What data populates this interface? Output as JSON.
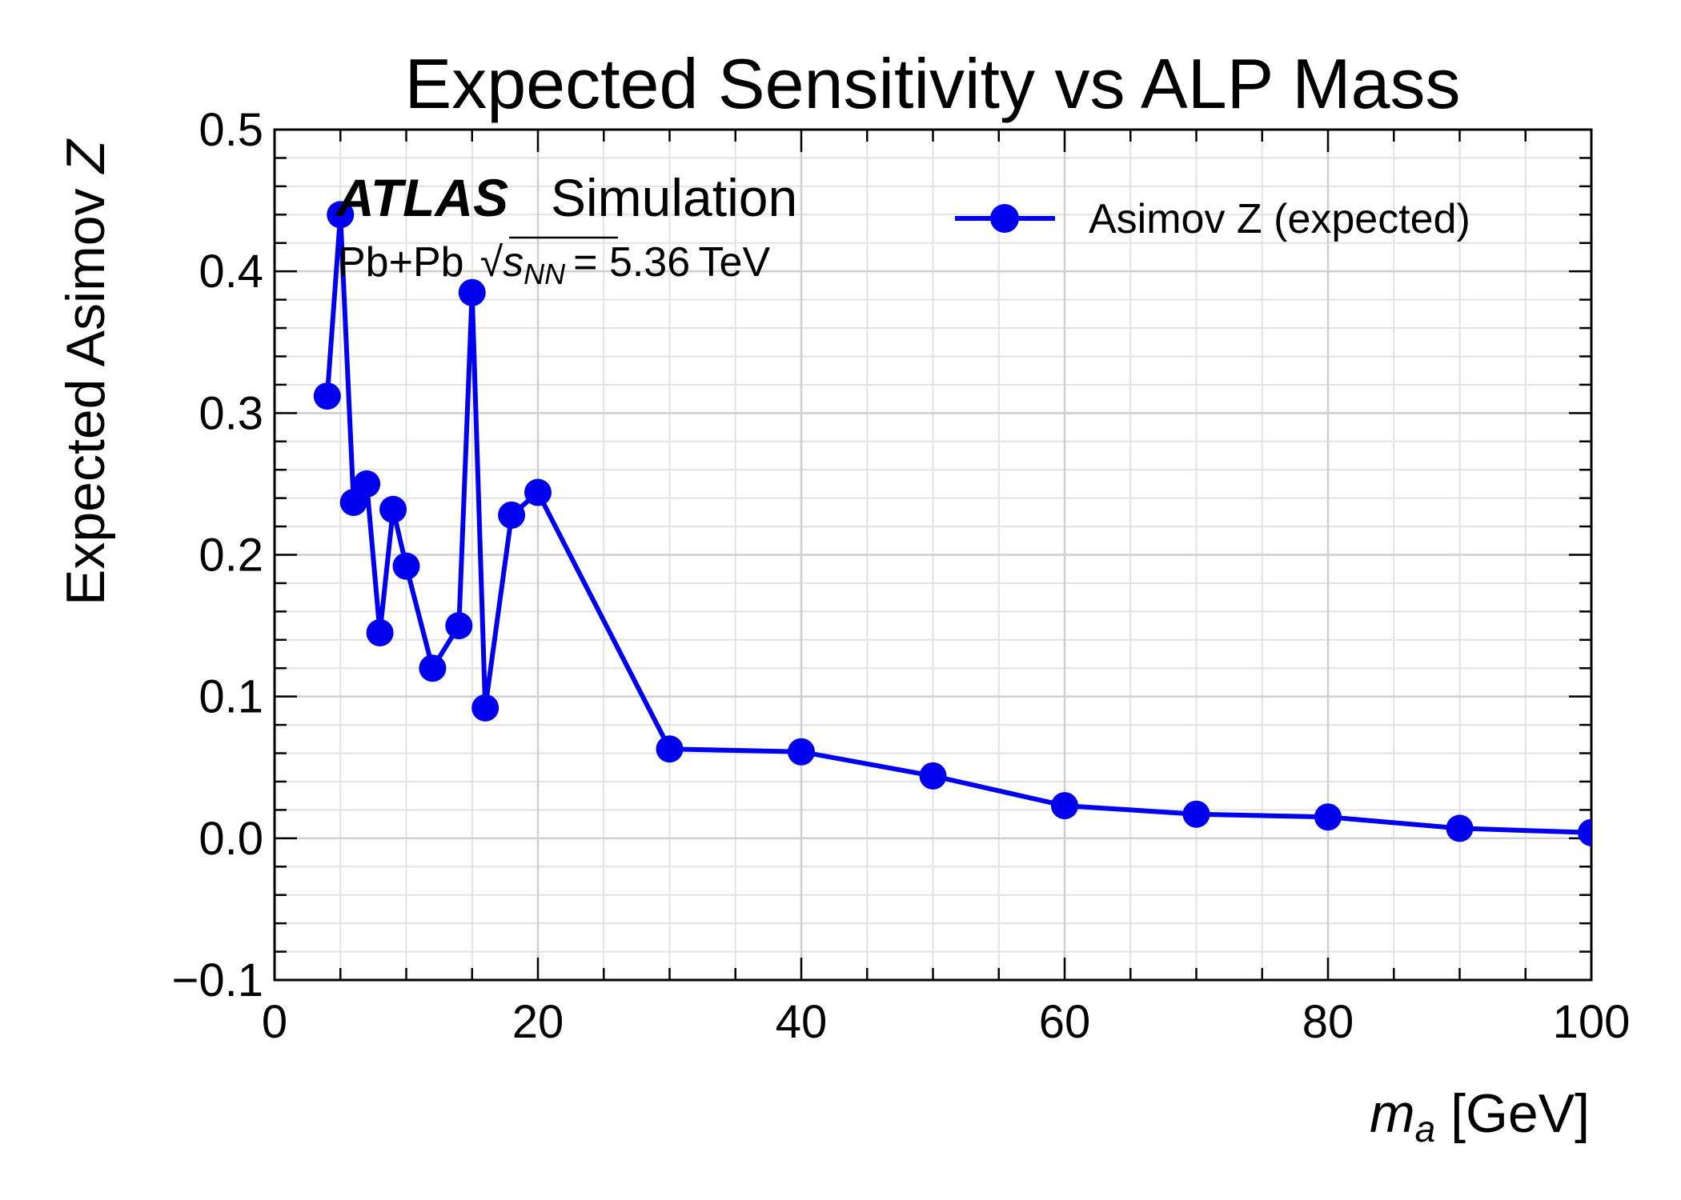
{
  "chart_data": {
    "type": "line",
    "title": "Expected Sensitivity vs ALP Mass",
    "xlabel": "m_a [GeV]",
    "xlabel_symbol": "m",
    "xlabel_subscript": "a",
    "xlabel_unit": "[GeV]",
    "ylabel": "Expected Asimov Z",
    "ylabel_text": "Expected Asimov ",
    "ylabel_symbol": "Z",
    "xlim": [
      0,
      100
    ],
    "ylim": [
      -0.1,
      0.5
    ],
    "x_ticks": [
      "0",
      "20",
      "40",
      "60",
      "80",
      "100"
    ],
    "y_ticks": [
      "−0.1",
      "0.0",
      "0.1",
      "0.2",
      "0.3",
      "0.4",
      "0.5"
    ],
    "grid": true,
    "legend_position": "top-right",
    "series": [
      {
        "name": "Asimov Z (expected)",
        "color": "#0000ee",
        "x": [
          4,
          5,
          6,
          7,
          8,
          9,
          10,
          12,
          14,
          15,
          16,
          18,
          20,
          30,
          40,
          50,
          60,
          70,
          80,
          90,
          100
        ],
        "y": [
          0.312,
          0.44,
          0.237,
          0.25,
          0.145,
          0.232,
          0.192,
          0.12,
          0.15,
          0.385,
          0.092,
          0.228,
          0.244,
          0.063,
          0.061,
          0.044,
          0.023,
          0.017,
          0.015,
          0.007,
          0.004
        ]
      }
    ],
    "annotations": {
      "atlas": "ATLAS",
      "simulation": "Simulation",
      "collision": "Pb+Pb",
      "sqrt_sym": "√",
      "s_symbol": "s",
      "nn_subscript": "NN",
      "energy": "= 5.36 TeV"
    }
  }
}
